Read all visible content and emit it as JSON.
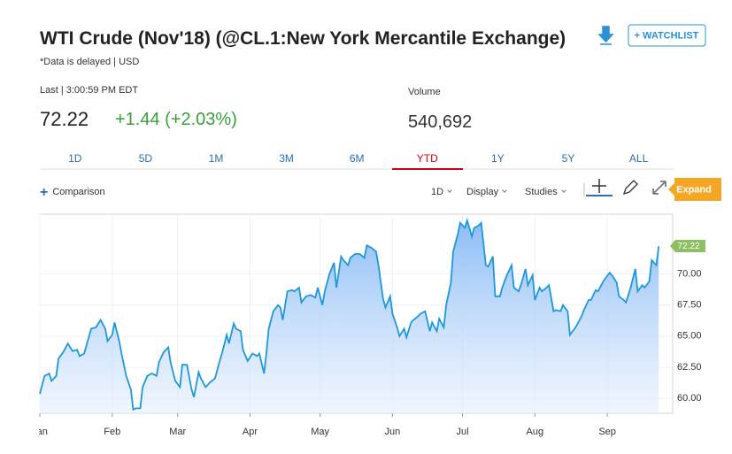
{
  "header": {
    "title": "WTI Crude (Nov'18) (@CL.1:New York Mercantile Exchange)",
    "subtitle": "*Data is delayed | USD",
    "watchlist": "+ WATCHLIST"
  },
  "quote": {
    "last_time": "Last | 3:00:59 PM EDT",
    "price": "72.22",
    "change": "+1.44 (+2.03%)",
    "volume_label": "Volume",
    "volume": "540,692"
  },
  "tabs": [
    "1D",
    "5D",
    "1M",
    "3M",
    "6M",
    "YTD",
    "1Y",
    "5Y",
    "ALL"
  ],
  "active_tab": "YTD",
  "toolbar": {
    "comparison": "Comparison",
    "interval": "1D",
    "display": "Display",
    "studies": "Studies",
    "expand": "Expand"
  },
  "chart_data": {
    "type": "line",
    "x": [
      1,
      3,
      5,
      6,
      8,
      9,
      11,
      13,
      15,
      17,
      18,
      20,
      23,
      25,
      27,
      29,
      30,
      32,
      33,
      35,
      36,
      38,
      40,
      41,
      42,
      44,
      45,
      47,
      49,
      51,
      52,
      54,
      56,
      57,
      59,
      61,
      62,
      64,
      66,
      67,
      69,
      70,
      72,
      74,
      76,
      78,
      79,
      81,
      82,
      84,
      85,
      87,
      88,
      90,
      92,
      94,
      95,
      97,
      98,
      99,
      101,
      103,
      104,
      105,
      107,
      109,
      110,
      112,
      113,
      115,
      117,
      119,
      120,
      122,
      123,
      125,
      127,
      128,
      130,
      131,
      133,
      134,
      136,
      138,
      140,
      141,
      143,
      145,
      146,
      148,
      149,
      151,
      152,
      154,
      155,
      157,
      158,
      160,
      161,
      163,
      164,
      166,
      168,
      169,
      171,
      172,
      174,
      175,
      177,
      178,
      180,
      181,
      183,
      184,
      186,
      187,
      189,
      190,
      192,
      193,
      195,
      196,
      198,
      199,
      201,
      203,
      204,
      206,
      207,
      209,
      210,
      212,
      213,
      215,
      216,
      218,
      219,
      221,
      222,
      224,
      225,
      227,
      228,
      230,
      231,
      233,
      234,
      236,
      237,
      239,
      240,
      242,
      243,
      245,
      246,
      248,
      249,
      251,
      252,
      254,
      256,
      257,
      259,
      260,
      262,
      263,
      265,
      266
    ],
    "series": [
      {
        "color": "#1e98dc",
        "values": [
          60.36,
          61.8,
          62.0,
          61.4,
          61.8,
          63.2,
          63.7,
          64.4,
          63.8,
          63.9,
          63.4,
          63.6,
          65.6,
          65.7,
          66.3,
          65.6,
          64.6,
          65.1,
          66.1,
          64.6,
          63.6,
          61.8,
          60.7,
          59.1,
          59.2,
          59.2,
          60.9,
          61.8,
          62.0,
          61.8,
          62.9,
          63.7,
          64.1,
          62.9,
          61.4,
          60.9,
          62.7,
          62.7,
          60.7,
          60.1,
          62.1,
          61.6,
          60.9,
          61.3,
          61.6,
          63.0,
          63.6,
          65.1,
          64.4,
          66.0,
          65.6,
          65.4,
          63.9,
          63.0,
          63.6,
          63.4,
          63.6,
          62.0,
          63.6,
          65.6,
          67.0,
          67.5,
          67.3,
          66.3,
          68.6,
          68.7,
          68.6,
          68.9,
          67.7,
          68.2,
          68.3,
          68.1,
          68.9,
          67.5,
          68.6,
          70.0,
          70.9,
          68.9,
          71.4,
          71.1,
          70.7,
          71.3,
          71.6,
          71.6,
          71.3,
          72.3,
          72.1,
          71.8,
          70.7,
          68.0,
          67.3,
          68.2,
          66.8,
          65.7,
          65.0,
          65.6,
          64.9,
          66.1,
          66.3,
          66.6,
          66.8,
          67.0,
          65.4,
          66.1,
          65.4,
          66.4,
          65.7,
          67.5,
          69.3,
          71.8,
          73.2,
          74.1,
          73.7,
          74.3,
          73.0,
          73.7,
          73.9,
          74.1,
          70.7,
          70.6,
          71.4,
          68.2,
          68.2,
          68.9,
          69.9,
          70.7,
          68.9,
          68.6,
          69.1,
          70.4,
          69.1,
          69.9,
          67.9,
          68.9,
          68.6,
          68.9,
          69.1,
          67.0,
          67.1,
          67.0,
          67.5,
          67.0,
          65.1,
          65.6,
          65.9,
          66.6,
          67.1,
          67.9,
          67.9,
          68.7,
          68.6,
          69.3,
          69.6,
          70.1,
          69.9,
          69.3,
          68.2,
          67.9,
          67.7,
          68.9,
          70.4,
          68.6,
          69.1,
          68.9,
          69.4,
          71.1,
          70.7,
          72.22
        ]
      }
    ],
    "xlim": [
      1,
      272
    ],
    "xticks": [
      {
        "value": 1,
        "label": "Jan"
      },
      {
        "value": 32,
        "label": "Feb"
      },
      {
        "value": 60,
        "label": "Mar"
      },
      {
        "value": 91,
        "label": "Apr"
      },
      {
        "value": 121,
        "label": "May"
      },
      {
        "value": 152,
        "label": "Jun"
      },
      {
        "value": 182,
        "label": "Jul"
      },
      {
        "value": 213,
        "label": "Aug"
      },
      {
        "value": 244,
        "label": "Sep"
      }
    ],
    "ylim": [
      58.8,
      74.8
    ],
    "yticks": [
      {
        "value": 60,
        "label": "60.00"
      },
      {
        "value": 62.5,
        "label": "62.50"
      },
      {
        "value": 65,
        "label": "65.00"
      },
      {
        "value": 67.5,
        "label": "67.50"
      },
      {
        "value": 70,
        "label": "70.00"
      }
    ],
    "grid": true
  }
}
